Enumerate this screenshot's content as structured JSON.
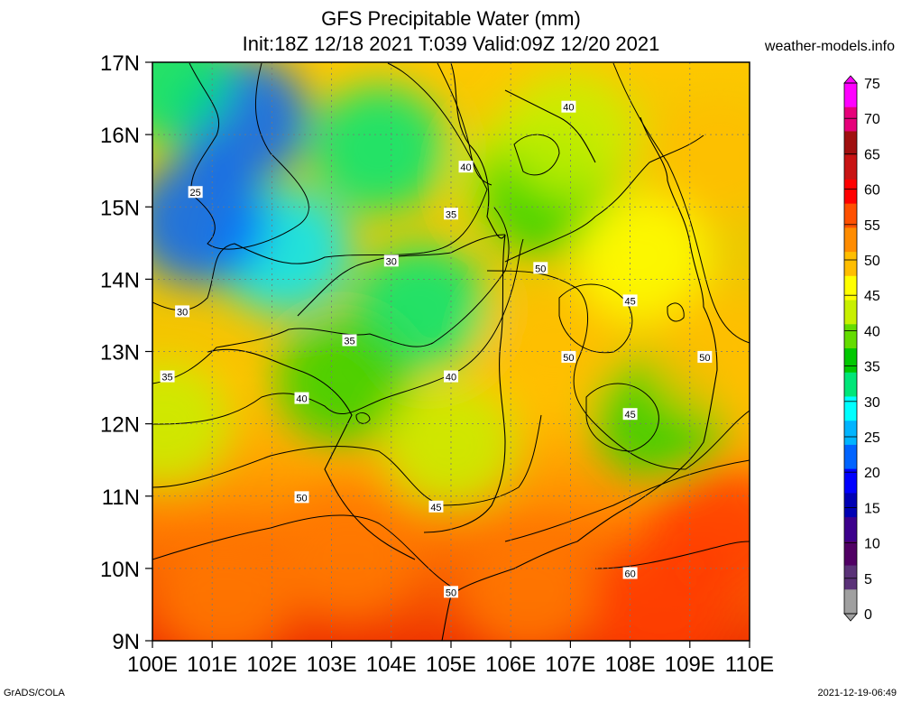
{
  "header": {
    "title": "GFS Precipitable Water (mm)",
    "subtitle": "Init:18Z 12/18 2021 T:039 Valid:09Z 12/20 2021",
    "source": "weather-models.info"
  },
  "footer": {
    "left": "GrADS/COLA",
    "right": "2021-12-19-06:49"
  },
  "map": {
    "lat_labels": [
      "17N",
      "16N",
      "15N",
      "14N",
      "13N",
      "12N",
      "11N",
      "10N",
      "9N"
    ],
    "lon_labels": [
      "100E",
      "101E",
      "102E",
      "103E",
      "104E",
      "105E",
      "106E",
      "107E",
      "108E",
      "109E",
      "110E"
    ],
    "lat_range": [
      9,
      17
    ],
    "lon_range": [
      100,
      110
    ],
    "grid": true,
    "contour_labels": [
      {
        "text": "25",
        "lon": 100.72,
        "lat": 15.2
      },
      {
        "text": "30",
        "lon": 100.5,
        "lat": 13.55
      },
      {
        "text": "35",
        "lon": 100.25,
        "lat": 12.65
      },
      {
        "text": "30",
        "lon": 104.0,
        "lat": 14.25
      },
      {
        "text": "35",
        "lon": 103.3,
        "lat": 13.15
      },
      {
        "text": "35",
        "lon": 105.0,
        "lat": 14.9
      },
      {
        "text": "40",
        "lon": 105.25,
        "lat": 15.55
      },
      {
        "text": "40",
        "lon": 102.5,
        "lat": 12.35
      },
      {
        "text": "40",
        "lon": 105.0,
        "lat": 12.65
      },
      {
        "text": "40",
        "lon": 106.97,
        "lat": 16.38
      },
      {
        "text": "45",
        "lon": 104.75,
        "lat": 10.85
      },
      {
        "text": "45",
        "lon": 108.0,
        "lat": 13.7
      },
      {
        "text": "45",
        "lon": 108.0,
        "lat": 12.13
      },
      {
        "text": "50",
        "lon": 106.5,
        "lat": 14.15
      },
      {
        "text": "50",
        "lon": 106.97,
        "lat": 12.92
      },
      {
        "text": "50",
        "lon": 109.25,
        "lat": 12.92
      },
      {
        "text": "50",
        "lon": 102.5,
        "lat": 10.98
      },
      {
        "text": "50",
        "lon": 105.0,
        "lat": 9.67
      },
      {
        "text": "60",
        "lon": 108.0,
        "lat": 9.93
      }
    ]
  },
  "colorbar": {
    "units": "mm",
    "ticks": [
      "75",
      "70",
      "65",
      "60",
      "55",
      "50",
      "45",
      "40",
      "35",
      "30",
      "25",
      "20",
      "15",
      "10",
      "5",
      "0"
    ],
    "colors": [
      "#ff00ff",
      "#e6007a",
      "#a01010",
      "#c81414",
      "#ff0000",
      "#ff5000",
      "#ff8c00",
      "#ffbe00",
      "#ffff00",
      "#c8f000",
      "#64dc00",
      "#00c800",
      "#00e678",
      "#00ffff",
      "#00b4ff",
      "#0064ff",
      "#0000ff",
      "#0000b4",
      "#3c008c",
      "#500064",
      "#5a3278",
      "#a0a0a0"
    ]
  },
  "chart_data": {
    "type": "heatmap",
    "title": "GFS Precipitable Water (mm)",
    "xlabel": "",
    "ylabel": "",
    "xlim": [
      100,
      110
    ],
    "ylim": [
      9,
      17
    ],
    "value_range": [
      0,
      75
    ],
    "blobs": [
      {
        "lon": 101.5,
        "lat": 16.2,
        "value": 20
      },
      {
        "lon": 102.2,
        "lat": 14.4,
        "value": 26
      },
      {
        "lon": 100.8,
        "lat": 14.8,
        "value": 24
      },
      {
        "lon": 103.8,
        "lat": 15.8,
        "value": 32
      },
      {
        "lon": 104.5,
        "lat": 13.6,
        "value": 33
      },
      {
        "lon": 103.2,
        "lat": 12.6,
        "value": 38
      },
      {
        "lon": 105.0,
        "lat": 11.7,
        "value": 44
      },
      {
        "lon": 106.3,
        "lat": 15.4,
        "value": 42
      },
      {
        "lon": 106.6,
        "lat": 15.2,
        "value": 36
      },
      {
        "lon": 107.0,
        "lat": 16.0,
        "value": 40
      },
      {
        "lon": 106.7,
        "lat": 13.0,
        "value": 51
      },
      {
        "lon": 108.2,
        "lat": 14.3,
        "value": 46
      },
      {
        "lon": 108.5,
        "lat": 12.1,
        "value": 38
      },
      {
        "lon": 109.5,
        "lat": 15.7,
        "value": 54
      },
      {
        "lon": 109.5,
        "lat": 13.0,
        "value": 52
      },
      {
        "lon": 101.2,
        "lat": 9.6,
        "value": 58
      },
      {
        "lon": 103.3,
        "lat": 10.2,
        "value": 55
      },
      {
        "lon": 106.3,
        "lat": 9.7,
        "value": 57
      },
      {
        "lon": 108.5,
        "lat": 9.5,
        "value": 63
      },
      {
        "lon": 109.5,
        "lat": 10.5,
        "value": 60
      },
      {
        "lon": 100.2,
        "lat": 16.8,
        "value": 34
      },
      {
        "lon": 100.2,
        "lat": 12.0,
        "value": 42
      }
    ]
  }
}
